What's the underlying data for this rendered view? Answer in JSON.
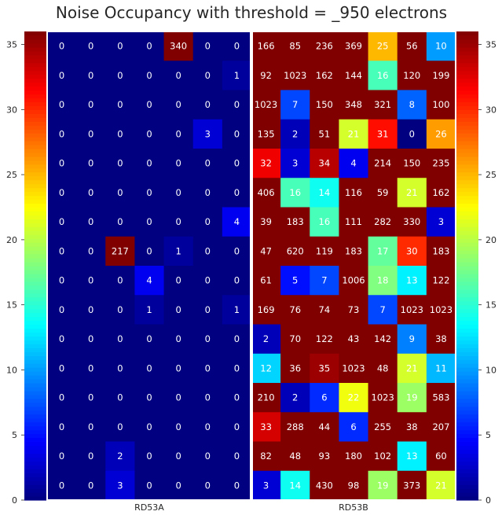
{
  "chart_data": {
    "type": "heatmap",
    "title": "Noise Occupancy with threshold = _950 electrons",
    "colormap": "jet",
    "color_range": [
      0,
      36
    ],
    "colorbar_ticks": [
      "0",
      "5",
      "10",
      "15",
      "20",
      "25",
      "30",
      "35"
    ],
    "y_ticks": [
      "0",
      "5",
      "10",
      "15",
      "20",
      "25",
      "30",
      "35"
    ],
    "y_range": [
      0,
      36
    ],
    "x_labels": [
      "RD53A",
      "RD53B"
    ],
    "rows": [
      [
        0,
        0,
        0,
        0,
        340,
        0,
        0,
        166,
        85,
        236,
        369,
        25,
        56,
        10
      ],
      [
        0,
        0,
        0,
        0,
        0,
        0,
        1,
        92,
        1023,
        162,
        144,
        16,
        120,
        199
      ],
      [
        0,
        0,
        0,
        0,
        0,
        0,
        0,
        1023,
        7,
        150,
        348,
        321,
        8,
        100
      ],
      [
        0,
        0,
        0,
        0,
        0,
        3,
        0,
        135,
        2,
        51,
        21,
        31,
        0,
        26
      ],
      [
        0,
        0,
        0,
        0,
        0,
        0,
        0,
        32,
        3,
        34,
        4,
        214,
        150,
        235
      ],
      [
        0,
        0,
        0,
        0,
        0,
        0,
        0,
        406,
        16,
        14,
        116,
        59,
        21,
        162
      ],
      [
        0,
        0,
        0,
        0,
        0,
        0,
        4,
        39,
        183,
        16,
        111,
        282,
        330,
        3
      ],
      [
        0,
        0,
        217,
        0,
        1,
        0,
        0,
        47,
        620,
        119,
        183,
        17,
        30,
        183
      ],
      [
        0,
        0,
        0,
        4,
        0,
        0,
        0,
        61,
        5,
        7,
        1006,
        18,
        13,
        122
      ],
      [
        0,
        0,
        0,
        1,
        0,
        0,
        1,
        169,
        76,
        74,
        73,
        7,
        1023,
        1023
      ],
      [
        0,
        0,
        0,
        0,
        0,
        0,
        0,
        2,
        70,
        122,
        43,
        142,
        9,
        38
      ],
      [
        0,
        0,
        0,
        0,
        0,
        0,
        0,
        12,
        36,
        35,
        1023,
        48,
        21,
        11
      ],
      [
        0,
        0,
        0,
        0,
        0,
        0,
        0,
        210,
        2,
        6,
        22,
        1023,
        19,
        583
      ],
      [
        0,
        0,
        0,
        0,
        0,
        0,
        0,
        33,
        288,
        44,
        6,
        255,
        38,
        207
      ],
      [
        0,
        0,
        2,
        0,
        0,
        0,
        0,
        82,
        48,
        93,
        180,
        102,
        13,
        60
      ],
      [
        0,
        0,
        3,
        0,
        0,
        0,
        0,
        3,
        14,
        430,
        98,
        19,
        373,
        21
      ]
    ]
  }
}
